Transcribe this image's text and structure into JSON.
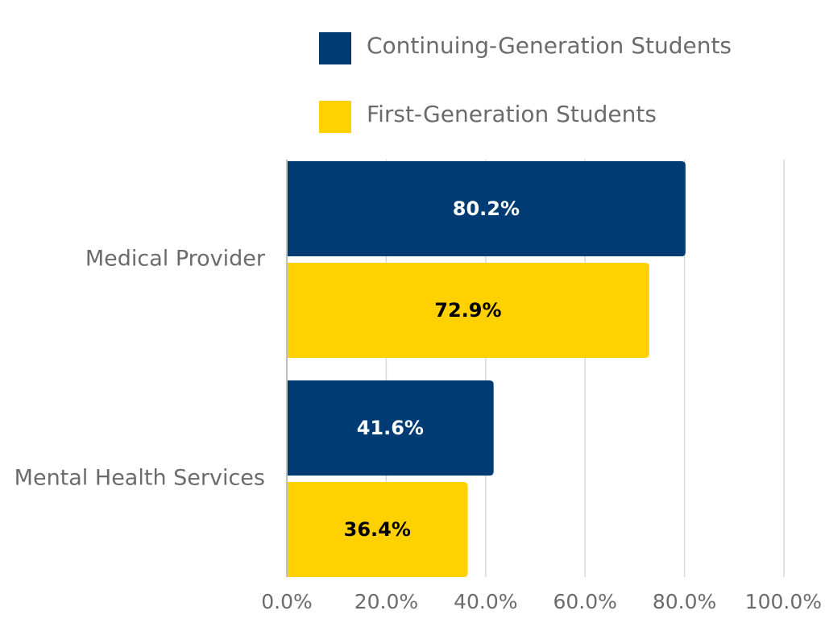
{
  "chart_data": {
    "type": "bar",
    "orientation": "horizontal",
    "categories": [
      "Medical Provider",
      "Mental Health Services"
    ],
    "series": [
      {
        "name": "Continuing-Generation Students",
        "color": "#003b73",
        "label_color": "#ffffff",
        "values": [
          80.2,
          41.6
        ],
        "labels": [
          "80.2%",
          "41.6%"
        ]
      },
      {
        "name": "First-Generation Students",
        "color": "#ffd100",
        "label_color": "#000000",
        "values": [
          72.9,
          36.4
        ],
        "labels": [
          "72.9%",
          "36.4%"
        ]
      }
    ],
    "xlim": [
      0,
      100
    ],
    "x_ticks": [
      0,
      20,
      40,
      60,
      80,
      100
    ],
    "x_tick_labels": [
      "0.0%",
      "20.0%",
      "40.0%",
      "60.0%",
      "80.0%",
      "100.0%"
    ],
    "grid": "vertical",
    "legend_position": "top",
    "gridline_color": "#d9d9d9",
    "axis_color": "#bfbfbf"
  }
}
